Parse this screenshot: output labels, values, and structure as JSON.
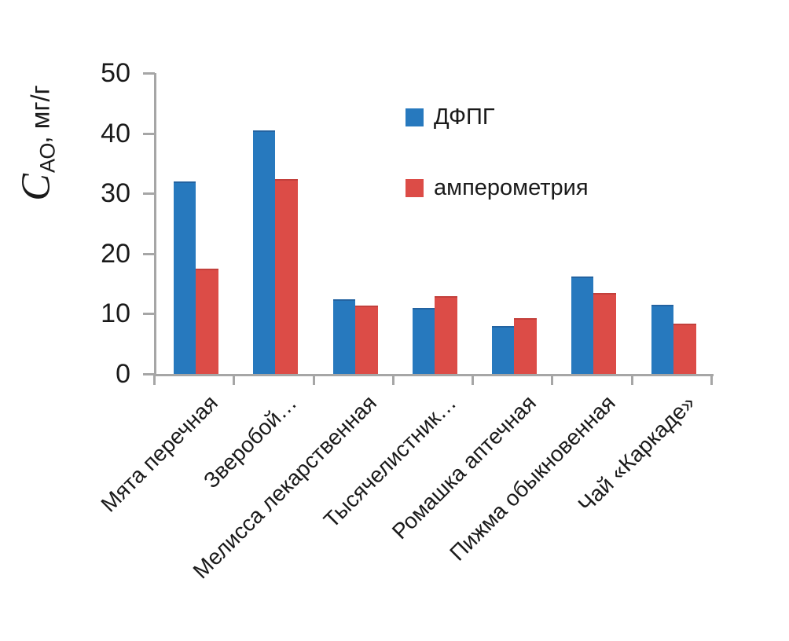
{
  "chart_data": {
    "type": "bar",
    "title": "",
    "categories": [
      "Мята перечная",
      "Зверобой…",
      "Мелисса лекарственная",
      "Тысячелистник…",
      "Ромашка аптечная",
      "Пижма обыкновенная",
      "Чай «Каркаде»"
    ],
    "series": [
      {
        "name": "ДФПГ",
        "color": "#2779BE",
        "values": [
          32.0,
          40.5,
          12.4,
          11.0,
          8.0,
          16.2,
          11.5
        ]
      },
      {
        "name": "амперометрия",
        "color": "#DC4C47",
        "values": [
          17.5,
          32.4,
          11.4,
          12.9,
          9.3,
          13.5,
          8.3
        ]
      }
    ],
    "ylabel": {
      "main": "C",
      "sub": "АО",
      "rest": ", мг/г"
    },
    "ylim": [
      0,
      50
    ],
    "ytick_step": 10,
    "ytick_labels": [
      "0",
      "10",
      "20",
      "30",
      "40",
      "50"
    ],
    "grid": false,
    "legend_position": "inside-upper-right",
    "axis_color": "#A6A6A6",
    "text_color": "#1A1A1A"
  }
}
